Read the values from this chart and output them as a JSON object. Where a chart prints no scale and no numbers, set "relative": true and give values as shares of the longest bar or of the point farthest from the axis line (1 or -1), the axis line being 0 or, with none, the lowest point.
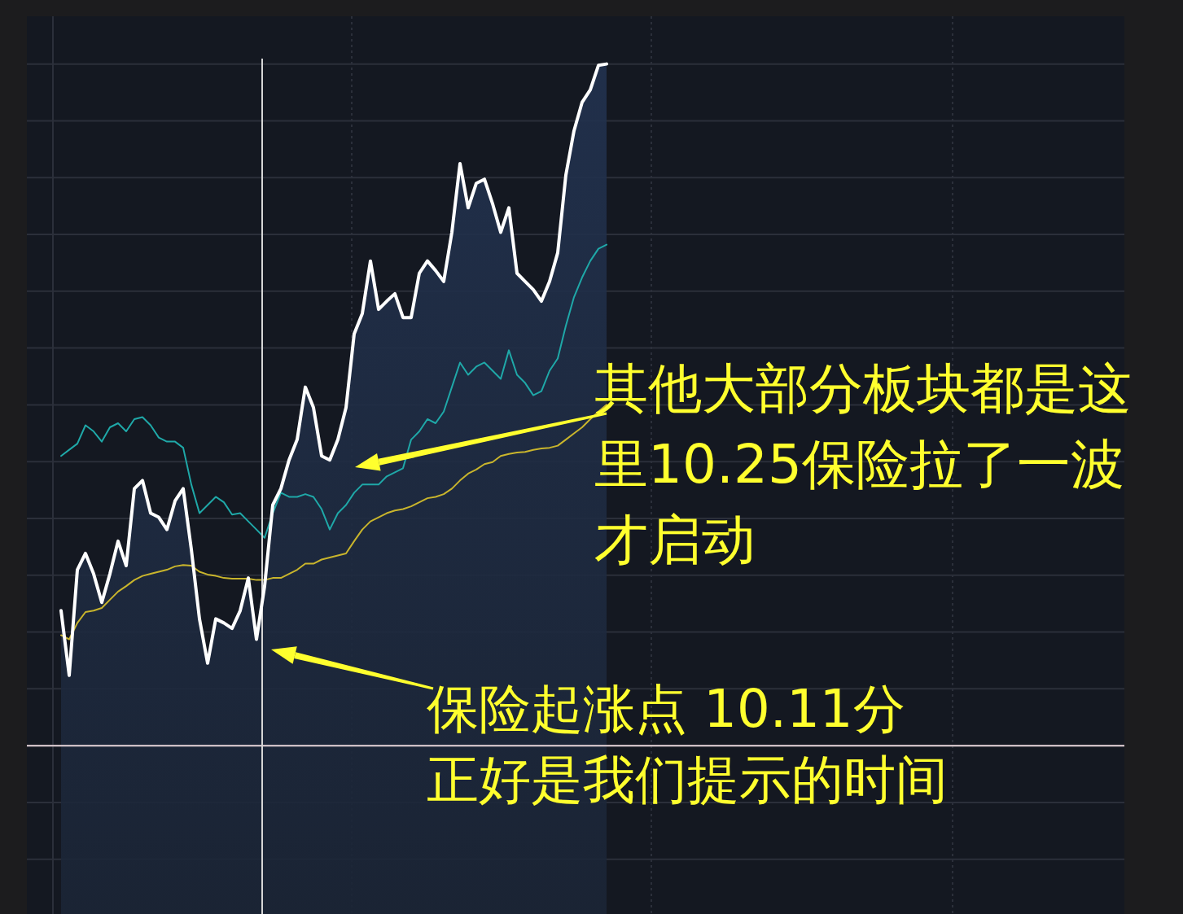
{
  "chart_data": {
    "type": "line",
    "relative": true,
    "grid": true,
    "categories": [
      null,
      null,
      null,
      null,
      null,
      null,
      null,
      null,
      null,
      null,
      null,
      null,
      null,
      null,
      null,
      null,
      null,
      null,
      null,
      null,
      null,
      null,
      null,
      null,
      null,
      null,
      null,
      null,
      null,
      null,
      null,
      null,
      null,
      null,
      null,
      null,
      null,
      null,
      null,
      null,
      null,
      null,
      null,
      null,
      null,
      null,
      null,
      null,
      null,
      null,
      null,
      null,
      null,
      null,
      null,
      null,
      null,
      null,
      null,
      null,
      null,
      null,
      null,
      null,
      null,
      null,
      null,
      null
    ],
    "series": [
      {
        "type": "area",
        "color": "#ffffff",
        "values": [
          0.198,
          0.103,
          0.258,
          0.282,
          0.252,
          0.21,
          0.252,
          0.3,
          0.264,
          0.377,
          0.389,
          0.341,
          0.335,
          0.317,
          0.359,
          0.377,
          0.288,
          0.186,
          0.121,
          0.186,
          0.18,
          0.172,
          0.198,
          0.246,
          0.156,
          0.234,
          0.353,
          0.377,
          0.419,
          0.449,
          0.526,
          0.496,
          0.425,
          0.419,
          0.449,
          0.496,
          0.604,
          0.634,
          0.711,
          0.64,
          0.652,
          0.663,
          0.628,
          0.628,
          0.693,
          0.711,
          0.697,
          0.681,
          0.753,
          0.854,
          0.789,
          0.825,
          0.831,
          0.795,
          0.753,
          0.789,
          0.693,
          0.681,
          0.669,
          0.652,
          0.681,
          0.723,
          0.837,
          0.902,
          0.944,
          0.962,
          0.998,
          1
        ]
      },
      {
        "type": "line",
        "color": "#1fa8a8",
        "values": [
          0.425,
          0.434,
          0.443,
          0.47,
          0.461,
          0.446,
          0.467,
          0.473,
          0.461,
          0.479,
          0.482,
          0.47,
          0.452,
          0.446,
          0.446,
          0.437,
          0.383,
          0.341,
          0.353,
          0.365,
          0.357,
          0.339,
          0.341,
          0.329,
          0.317,
          0.305,
          0.341,
          0.371,
          0.365,
          0.365,
          0.369,
          0.365,
          0.347,
          0.317,
          0.341,
          0.353,
          0.371,
          0.383,
          0.383,
          0.383,
          0.395,
          0.401,
          0.407,
          0.449,
          0.461,
          0.479,
          0.473,
          0.49,
          0.526,
          0.562,
          0.544,
          0.556,
          0.562,
          0.55,
          0.538,
          0.58,
          0.544,
          0.532,
          0.514,
          0.52,
          0.55,
          0.568,
          0.616,
          0.658,
          0.687,
          0.711,
          0.729,
          0.735
        ]
      },
      {
        "type": "line",
        "color": "#c9b52c",
        "values": [
          0.162,
          0.156,
          0.18,
          0.196,
          0.198,
          0.202,
          0.214,
          0.226,
          0.234,
          0.243,
          0.249,
          0.252,
          0.255,
          0.258,
          0.263,
          0.265,
          0.264,
          0.255,
          0.251,
          0.249,
          0.246,
          0.245,
          0.245,
          0.245,
          0.243,
          0.243,
          0.246,
          0.246,
          0.252,
          0.258,
          0.267,
          0.267,
          0.273,
          0.276,
          0.279,
          0.282,
          0.3,
          0.317,
          0.329,
          0.335,
          0.341,
          0.345,
          0.347,
          0.351,
          0.357,
          0.363,
          0.365,
          0.369,
          0.377,
          0.389,
          0.399,
          0.405,
          0.413,
          0.416,
          0.425,
          0.428,
          0.43,
          0.431,
          0.434,
          0.436,
          0.437,
          0.44,
          0.449,
          0.458,
          0.467,
          0.479,
          0.49,
          0.5
        ]
      }
    ],
    "ref_lines": [
      {
        "axis": "y",
        "value": 0,
        "color": "#e8d6db"
      }
    ],
    "annotations": [
      "其他大部分板块都是这里10.25保险拉了一波才启动",
      "保险起涨点 10.11分正好是我们提示的时间"
    ]
  }
}
